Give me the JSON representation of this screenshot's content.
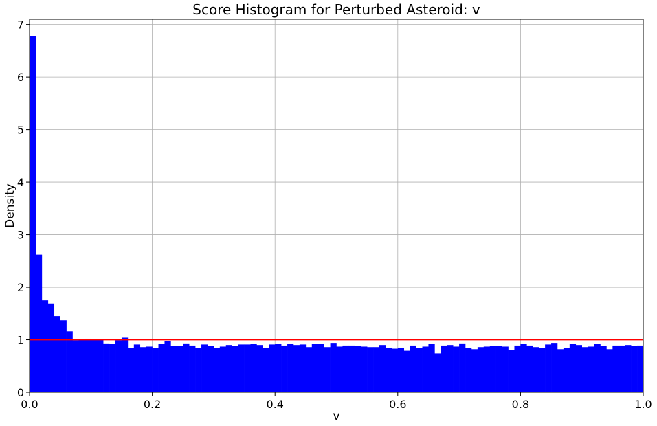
{
  "chart_data": {
    "type": "bar",
    "title": "Score Histogram for Perturbed Asteroid: v",
    "xlabel": "v",
    "ylabel": "Density",
    "xlim": [
      0.0,
      1.0
    ],
    "ylim": [
      0,
      7.1
    ],
    "xticks": [
      0.0,
      0.2,
      0.4,
      0.6,
      0.8,
      1.0
    ],
    "xtick_labels": [
      "0.0",
      "0.2",
      "0.4",
      "0.6",
      "0.8",
      "1.0"
    ],
    "yticks": [
      0,
      1,
      2,
      3,
      4,
      5,
      6,
      7
    ],
    "ytick_labels": [
      "0",
      "1",
      "2",
      "3",
      "4",
      "5",
      "6",
      "7"
    ],
    "grid": true,
    "bins": 100,
    "bin_width": 0.01,
    "bar_color": "#0000ff",
    "reference_line": {
      "y": 1.0,
      "color": "#ff0000"
    },
    "values": [
      6.78,
      2.62,
      1.75,
      1.69,
      1.45,
      1.37,
      1.16,
      0.99,
      1.01,
      1.02,
      1.01,
      1.01,
      0.93,
      0.92,
      0.99,
      1.04,
      0.84,
      0.91,
      0.86,
      0.87,
      0.84,
      0.92,
      0.98,
      0.88,
      0.88,
      0.93,
      0.89,
      0.84,
      0.91,
      0.88,
      0.85,
      0.87,
      0.9,
      0.88,
      0.91,
      0.91,
      0.92,
      0.9,
      0.85,
      0.91,
      0.92,
      0.89,
      0.92,
      0.9,
      0.91,
      0.86,
      0.92,
      0.92,
      0.86,
      0.94,
      0.87,
      0.89,
      0.89,
      0.88,
      0.87,
      0.86,
      0.86,
      0.9,
      0.85,
      0.83,
      0.85,
      0.79,
      0.89,
      0.84,
      0.87,
      0.92,
      0.74,
      0.89,
      0.9,
      0.87,
      0.93,
      0.85,
      0.82,
      0.86,
      0.87,
      0.88,
      0.88,
      0.87,
      0.8,
      0.89,
      0.92,
      0.89,
      0.86,
      0.84,
      0.91,
      0.94,
      0.82,
      0.84,
      0.92,
      0.9,
      0.86,
      0.87,
      0.92,
      0.88,
      0.82,
      0.89,
      0.89,
      0.9,
      0.88,
      0.89
    ]
  }
}
